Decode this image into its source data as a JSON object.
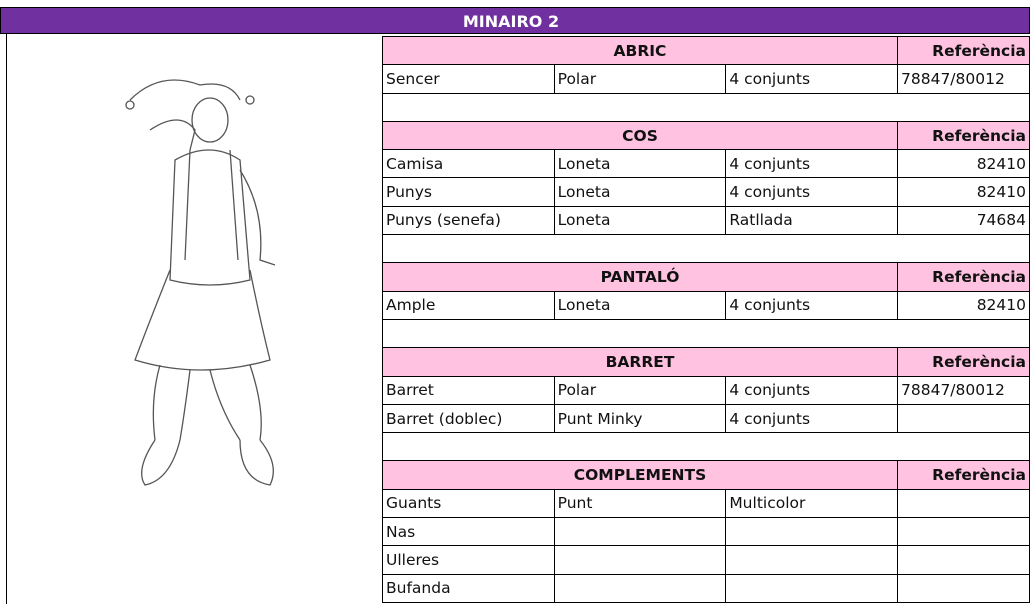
{
  "header": {
    "title": "MINAIRO 2"
  },
  "sections": [
    {
      "title": "ABRIC",
      "reference_label": "Referència",
      "rows": [
        [
          "Sencer",
          "Polar",
          "4 conjunts",
          "78847/80012"
        ]
      ]
    },
    {
      "title": "COS",
      "reference_label": "Referència",
      "rows": [
        [
          "Camisa",
          "Loneta",
          "4 conjunts",
          82410
        ],
        [
          "Punys",
          "Loneta",
          "4 conjunts",
          82410
        ],
        [
          "Punys (senefa)",
          "Loneta",
          "Ratllada",
          74684
        ]
      ]
    },
    {
      "title": "PANTALÓ",
      "reference_label": "Referència",
      "rows": [
        [
          "Ample",
          "Loneta",
          "4 conjunts",
          82410
        ]
      ]
    },
    {
      "title": "BARRET",
      "reference_label": "Referència",
      "rows": [
        [
          "Barret",
          "Polar",
          "4 conjunts",
          "78847/80012"
        ],
        [
          "Barret (doblec)",
          "Punt Minky",
          "4 conjunts",
          null
        ]
      ]
    },
    {
      "title": "COMPLEMENTS",
      "reference_label": "Referència",
      "rows": [
        [
          "Guants",
          "Punt",
          "Multicolor",
          null
        ],
        [
          "Nas",
          null,
          null,
          null
        ],
        [
          "Ulleres",
          null,
          null,
          null
        ],
        [
          "Bufanda",
          null,
          null,
          null
        ]
      ]
    }
  ]
}
